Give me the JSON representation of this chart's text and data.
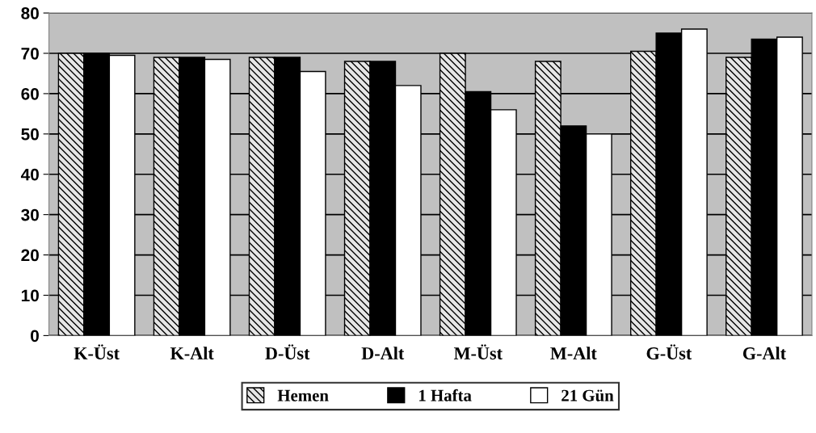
{
  "chart_data": {
    "type": "bar",
    "categories": [
      "K-Üst",
      "K-Alt",
      "D-Üst",
      "D-Alt",
      "M-Üst",
      "M-Alt",
      "G-Üst",
      "G-Alt"
    ],
    "series": [
      {
        "name": "Hemen",
        "color": "#e6e6e6",
        "values": [
          70,
          69,
          69,
          68,
          70,
          68,
          70.5,
          69
        ]
      },
      {
        "name": "1 Hafta",
        "color": "#000000",
        "values": [
          70,
          69,
          69,
          68,
          60.5,
          52,
          75,
          73.5
        ]
      },
      {
        "name": "21 Gün",
        "color": "#ffffff",
        "values": [
          69.5,
          68.5,
          65.5,
          62,
          56,
          50,
          76,
          74
        ]
      }
    ],
    "ylim": [
      0,
      80
    ],
    "yticks": [
      0,
      10,
      20,
      30,
      40,
      50,
      60,
      70,
      80
    ],
    "grid": "y",
    "legend": "bottom"
  }
}
